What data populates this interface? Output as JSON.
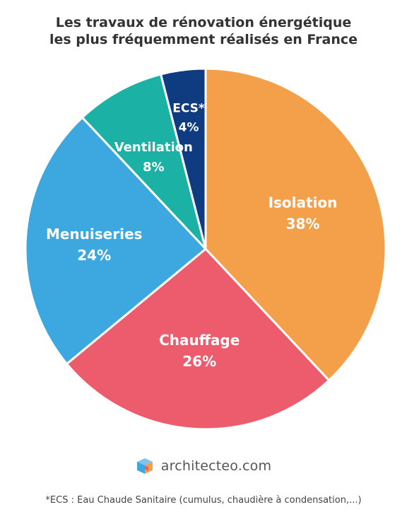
{
  "chart_data": {
    "type": "pie",
    "title": "Les travaux de rénovation énergétique",
    "subtitle": "les plus fréquemment réalisés en France",
    "slices": [
      {
        "name": "Isolation",
        "value": 38,
        "label": "38%",
        "color": "#f4a04a"
      },
      {
        "name": "Chauffage",
        "value": 26,
        "label": "26%",
        "color": "#ec5c6d"
      },
      {
        "name": "Menuiseries",
        "value": 24,
        "label": "24%",
        "color": "#3da8e0"
      },
      {
        "name": "Ventilation",
        "value": 8,
        "label": "8%",
        "color": "#1bb2a5"
      },
      {
        "name": "ECS*",
        "value": 4,
        "label": "4%",
        "color": "#0f3b80"
      }
    ],
    "legend": "none"
  },
  "brand": {
    "name": "architecteo.com",
    "icon": "cube-icon"
  },
  "footnote": "*ECS : Eau Chaude Sanitaire (cumulus, chaudière à condensation,...)"
}
